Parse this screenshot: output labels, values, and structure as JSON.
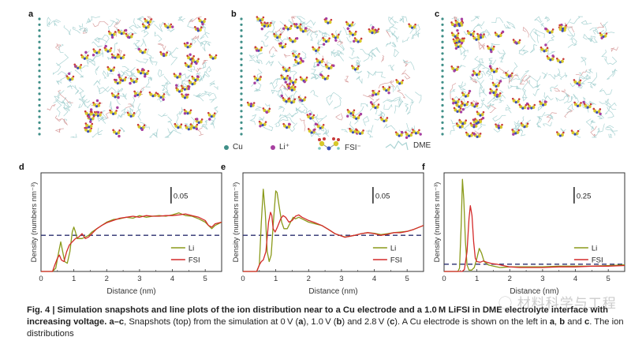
{
  "figure": {
    "snapshots": [
      {
        "label": "a",
        "voltage": "0 V"
      },
      {
        "label": "b",
        "voltage": "1.0 V"
      },
      {
        "label": "c",
        "voltage": "2.8 V"
      }
    ],
    "species_legend": [
      {
        "name": "Cu",
        "color": "#3f8f88"
      },
      {
        "name": "Li⁺",
        "color": "#a63fa0"
      },
      {
        "name": "FSI⁻",
        "color": "#d8c82a"
      },
      {
        "name": "DME",
        "color": "#a9d3d3"
      }
    ],
    "colors": {
      "li": "#8a9a1a",
      "fsi": "#d42a2a",
      "bulk_line": "#2a2f6e",
      "frame": "#333333"
    },
    "caption": {
      "fig_label": "Fig. 4 |",
      "title": " Simulation snapshots and line plots of the ion distribution near to a Cu electrode and a 1.0 M LiFSI in DME electrolyte interface with increasing voltage.",
      "sub_label": " a–c",
      "text_1": ", Snapshots (top) from the simulation at 0 V (",
      "a": "a",
      "text_2": "), 1.0 V (",
      "b": "b",
      "text_3": ") and 2.8 V (",
      "c": "c",
      "text_4": "). A Cu electrode is shown on the left in ",
      "a2": "a",
      "text_5": ", ",
      "b2": "b",
      "text_6": " and ",
      "c2": "c",
      "text_7": ". The ion distributions"
    },
    "watermark": "材料科学与工程"
  },
  "chart_data": [
    {
      "type": "line",
      "panel": "d",
      "xlabel": "Distance (nm)",
      "ylabel": "Density (numbers nm⁻³)",
      "xlim": [
        0,
        5.5
      ],
      "xticks": [
        0,
        1,
        2,
        3,
        4,
        5
      ],
      "ylim": [
        0,
        0.3
      ],
      "scale_bar_label": "0.05",
      "scale_bar_value": 0.05,
      "bulk_density": 0.11,
      "legend": [
        "Li",
        "FSI"
      ],
      "legend_position": "bottom-right",
      "series": [
        {
          "name": "Li",
          "x": [
            0,
            0.35,
            0.45,
            0.52,
            0.6,
            0.66,
            0.72,
            0.8,
            0.88,
            0.95,
            1.0,
            1.05,
            1.1,
            1.18,
            1.25,
            1.35,
            1.45,
            1.55,
            1.7,
            1.85,
            2.0,
            2.2,
            2.4,
            2.6,
            2.8,
            3.0,
            3.2,
            3.4,
            3.6,
            3.8,
            4.0,
            4.2,
            4.4,
            4.6,
            4.8,
            5.0,
            5.1,
            5.2,
            5.3,
            5.5
          ],
          "y": [
            0,
            0,
            0.01,
            0.05,
            0.09,
            0.06,
            0.03,
            0.025,
            0.06,
            0.12,
            0.135,
            0.12,
            0.1,
            0.1,
            0.1,
            0.105,
            0.11,
            0.12,
            0.13,
            0.14,
            0.15,
            0.158,
            0.16,
            0.165,
            0.162,
            0.17,
            0.165,
            0.168,
            0.17,
            0.168,
            0.172,
            0.178,
            0.17,
            0.168,
            0.16,
            0.15,
            0.14,
            0.13,
            0.14,
            0.15
          ]
        },
        {
          "name": "FSI",
          "x": [
            0,
            0.35,
            0.42,
            0.5,
            0.56,
            0.62,
            0.7,
            0.78,
            0.86,
            0.95,
            1.05,
            1.15,
            1.25,
            1.35,
            1.45,
            1.55,
            1.7,
            1.85,
            2.0,
            2.2,
            2.4,
            2.6,
            2.8,
            3.0,
            3.2,
            3.4,
            3.6,
            3.8,
            4.0,
            4.2,
            4.4,
            4.6,
            4.8,
            5.0,
            5.1,
            5.2,
            5.3,
            5.5
          ],
          "y": [
            0,
            0,
            0.02,
            0.04,
            0.05,
            0.035,
            0.03,
            0.06,
            0.08,
            0.09,
            0.1,
            0.105,
            0.115,
            0.1,
            0.105,
            0.115,
            0.13,
            0.14,
            0.148,
            0.155,
            0.162,
            0.165,
            0.168,
            0.165,
            0.17,
            0.168,
            0.168,
            0.17,
            0.17,
            0.172,
            0.175,
            0.17,
            0.165,
            0.155,
            0.14,
            0.135,
            0.145,
            0.15
          ]
        }
      ]
    },
    {
      "type": "line",
      "panel": "e",
      "xlabel": "Distance (nm)",
      "ylabel": "Density (numbers nm⁻³)",
      "xlim": [
        0,
        5.5
      ],
      "xticks": [
        0,
        1,
        2,
        3,
        4,
        5
      ],
      "ylim": [
        0,
        0.3
      ],
      "scale_bar_label": "0.05",
      "scale_bar_value": 0.05,
      "bulk_density": 0.11,
      "legend": [
        "Li",
        "FSI"
      ],
      "legend_position": "bottom-right",
      "series": [
        {
          "name": "Li",
          "x": [
            0,
            0.42,
            0.5,
            0.56,
            0.62,
            0.68,
            0.74,
            0.8,
            0.86,
            0.92,
            1.0,
            1.04,
            1.1,
            1.18,
            1.25,
            1.35,
            1.45,
            1.53,
            1.6,
            1.7,
            1.8,
            2.0,
            2.2,
            2.4,
            2.6,
            2.8,
            3.0,
            3.1,
            3.2,
            3.4,
            3.6,
            3.8,
            4.0,
            4.2,
            4.4,
            4.6,
            4.8,
            5.0,
            5.2,
            5.5
          ],
          "y": [
            0,
            0,
            0.02,
            0.15,
            0.25,
            0.18,
            0.06,
            0.03,
            0.05,
            0.14,
            0.245,
            0.24,
            0.2,
            0.15,
            0.13,
            0.13,
            0.15,
            0.165,
            0.16,
            0.165,
            0.16,
            0.15,
            0.145,
            0.14,
            0.128,
            0.115,
            0.108,
            0.105,
            0.106,
            0.11,
            0.115,
            0.118,
            0.116,
            0.112,
            0.115,
            0.118,
            0.12,
            0.122,
            0.128,
            0.14
          ]
        },
        {
          "name": "FSI",
          "x": [
            0,
            0.42,
            0.5,
            0.56,
            0.62,
            0.7,
            0.78,
            0.84,
            0.88,
            0.92,
            0.98,
            1.05,
            1.15,
            1.22,
            1.3,
            1.4,
            1.5,
            1.6,
            1.7,
            1.8,
            2.0,
            2.2,
            2.4,
            2.6,
            2.8,
            3.0,
            3.1,
            3.2,
            3.4,
            3.6,
            3.8,
            4.0,
            4.2,
            4.4,
            4.6,
            4.8,
            5.0,
            5.2,
            5.5
          ],
          "y": [
            0,
            0,
            0.02,
            0.03,
            0.035,
            0.06,
            0.15,
            0.18,
            0.17,
            0.13,
            0.12,
            0.135,
            0.16,
            0.17,
            0.165,
            0.15,
            0.155,
            0.168,
            0.172,
            0.165,
            0.155,
            0.148,
            0.14,
            0.128,
            0.115,
            0.108,
            0.104,
            0.106,
            0.11,
            0.115,
            0.118,
            0.115,
            0.11,
            0.113,
            0.118,
            0.118,
            0.122,
            0.128,
            0.14
          ]
        }
      ]
    },
    {
      "type": "line",
      "panel": "f",
      "xlabel": "Distance (nm)",
      "ylabel": "Density (numbers nm⁻³)",
      "xlim": [
        0,
        5.5
      ],
      "xticks": [
        0,
        1,
        2,
        3,
        4,
        5
      ],
      "ylim": [
        0,
        1.5
      ],
      "scale_bar_label": "0.25",
      "scale_bar_value": 0.25,
      "bulk_density": 0.11,
      "legend": [
        "Li",
        "FSI"
      ],
      "legend_position": "bottom-right",
      "series": [
        {
          "name": "Li",
          "x": [
            0,
            0.42,
            0.47,
            0.52,
            0.56,
            0.6,
            0.65,
            0.7,
            0.76,
            0.84,
            0.92,
            1.0,
            1.07,
            1.14,
            1.22,
            1.35,
            1.5,
            1.7,
            2.0,
            2.5,
            3.0,
            3.5,
            4.0,
            4.5,
            5.0,
            5.5
          ],
          "y": [
            0,
            0,
            0.05,
            0.7,
            1.4,
            1.1,
            0.45,
            0.1,
            0.02,
            0.02,
            0.06,
            0.2,
            0.35,
            0.28,
            0.15,
            0.1,
            0.08,
            0.06,
            0.07,
            0.07,
            0.07,
            0.08,
            0.08,
            0.08,
            0.09,
            0.1
          ]
        },
        {
          "name": "FSI",
          "x": [
            0,
            0.55,
            0.62,
            0.7,
            0.76,
            0.8,
            0.85,
            0.9,
            0.95,
            1.0,
            1.1,
            1.2,
            1.3,
            1.45,
            1.6,
            1.8,
            2.0,
            2.3,
            2.6,
            3.0,
            3.5,
            4.0,
            4.5,
            5.0,
            5.5
          ],
          "y": [
            0,
            0,
            0.03,
            0.3,
            0.8,
            1.0,
            0.85,
            0.45,
            0.2,
            0.15,
            0.14,
            0.16,
            0.14,
            0.12,
            0.11,
            0.09,
            0.07,
            0.06,
            0.06,
            0.06,
            0.07,
            0.07,
            0.08,
            0.08,
            0.09
          ]
        }
      ]
    }
  ]
}
